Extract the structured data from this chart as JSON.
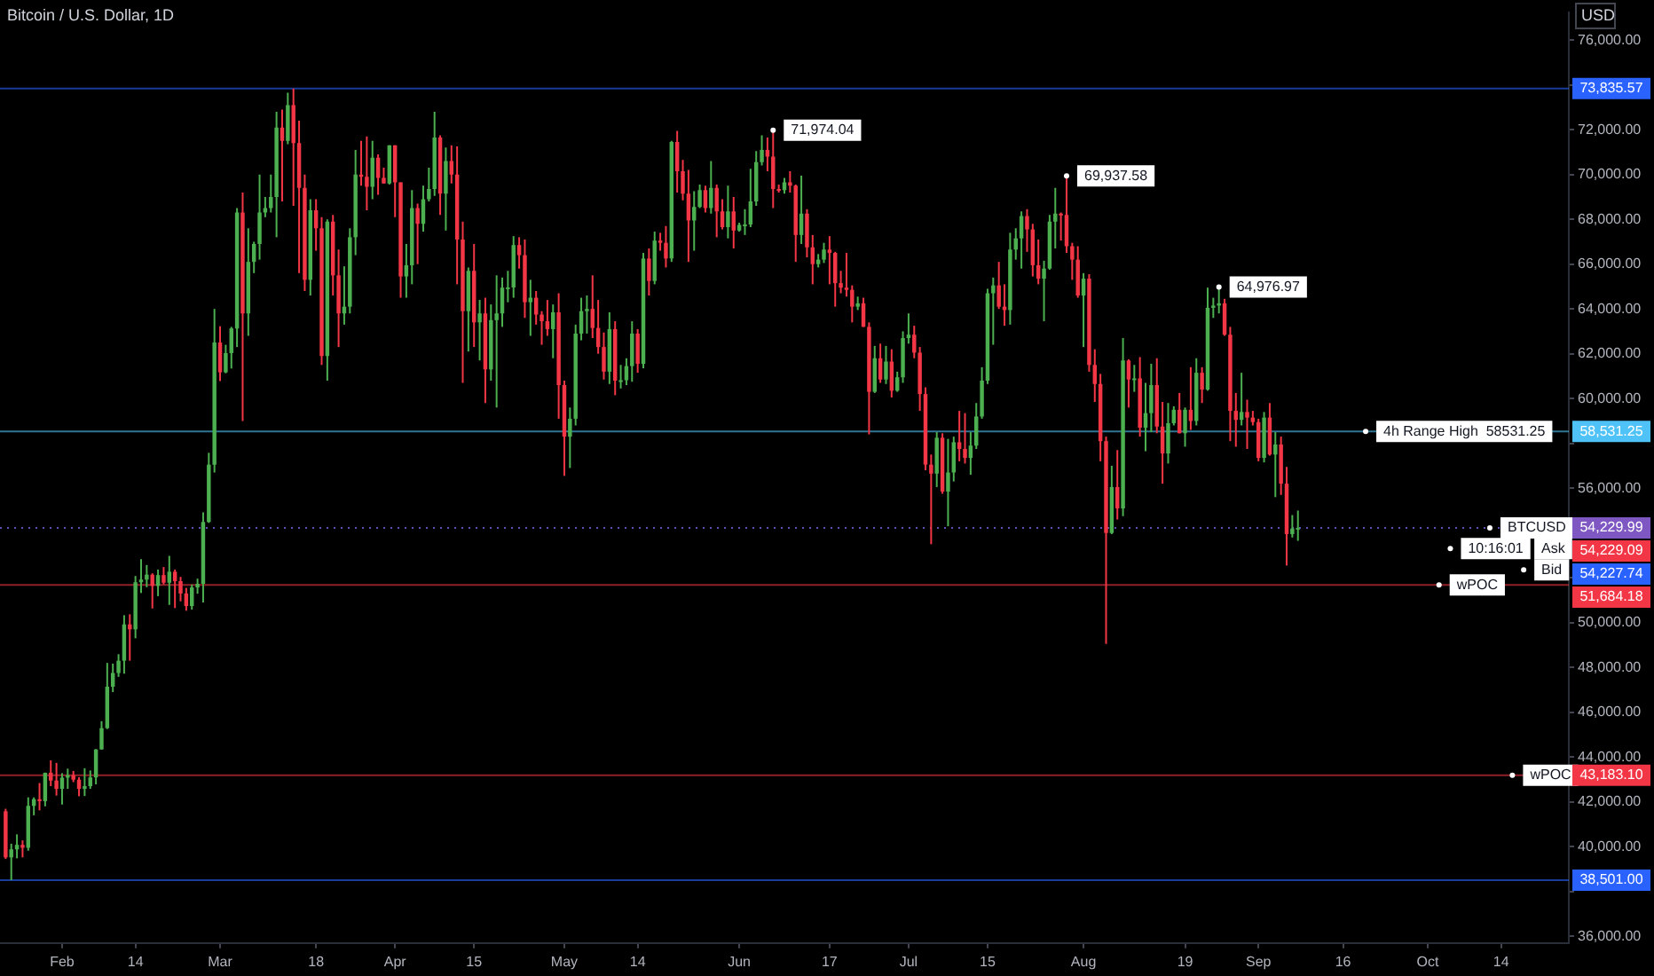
{
  "chart_data": {
    "type": "candlestick",
    "title": "Bitcoin / U.S. Dollar, 1D",
    "ylabel": "USD",
    "x": [
      "--01-22",
      "--01-23",
      "--01-24",
      "--01-25",
      "--01-26",
      "--01-27",
      "--01-28",
      "--01-29",
      "--01-30",
      "--01-31",
      "--02-01",
      "--02-02",
      "--02-03",
      "--02-04",
      "--02-05",
      "--02-06",
      "--02-07",
      "--02-08",
      "--02-09",
      "--02-10",
      "--02-11",
      "--02-12",
      "--02-13",
      "--02-14",
      "--02-15",
      "--02-16",
      "--02-17",
      "--02-18",
      "--02-19",
      "--02-20",
      "--02-21",
      "--02-22",
      "--02-23",
      "--02-24",
      "--02-25",
      "--02-26",
      "--02-27",
      "--02-28",
      "--03-01",
      "--03-02",
      "--03-03",
      "--03-04",
      "--03-05",
      "--03-06",
      "--03-07",
      "--03-08",
      "--03-09",
      "--03-10",
      "--03-11",
      "--03-12",
      "--03-13",
      "--03-14",
      "--03-15",
      "--03-16",
      "--03-17",
      "--03-18",
      "--03-19",
      "--03-20",
      "--03-21",
      "--03-22",
      "--03-23",
      "--03-24",
      "--03-25",
      "--03-26",
      "--03-27",
      "--03-28",
      "--03-29",
      "--03-30",
      "--03-31",
      "--04-01",
      "--04-02",
      "--04-03",
      "--04-04",
      "--04-05",
      "--04-06",
      "--04-07",
      "--04-08",
      "--04-09",
      "--04-10",
      "--04-11",
      "--04-12",
      "--04-13",
      "--04-14",
      "--04-15",
      "--04-16",
      "--04-17",
      "--04-18",
      "--04-19",
      "--04-20",
      "--04-21",
      "--04-22",
      "--04-23",
      "--04-24",
      "--04-25",
      "--04-26",
      "--04-27",
      "--04-28",
      "--04-29",
      "--04-30",
      "--05-01",
      "--05-02",
      "--05-03",
      "--05-04",
      "--05-05",
      "--05-06",
      "--05-07",
      "--05-08",
      "--05-09",
      "--05-10",
      "--05-11",
      "--05-12",
      "--05-13",
      "--05-14",
      "--05-15",
      "--05-16",
      "--05-17",
      "--05-18",
      "--05-19",
      "--05-20",
      "--05-21",
      "--05-22",
      "--05-23",
      "--05-24",
      "--05-25",
      "--05-26",
      "--05-27",
      "--05-28",
      "--05-29",
      "--05-30",
      "--05-31",
      "--06-01",
      "--06-02",
      "--06-03",
      "--06-04",
      "--06-05",
      "--06-06",
      "--06-07",
      "--06-08",
      "--06-09",
      "--06-10",
      "--06-11",
      "--06-12",
      "--06-13",
      "--06-14",
      "--06-15",
      "--06-16",
      "--06-17",
      "--06-18",
      "--06-19",
      "--06-20",
      "--06-21",
      "--06-22",
      "--06-23",
      "--06-24",
      "--06-25",
      "--06-26",
      "--06-27",
      "--06-28",
      "--06-29",
      "--06-30",
      "--07-01",
      "--07-02",
      "--07-03",
      "--07-04",
      "--07-05",
      "--07-06",
      "--07-07",
      "--07-08",
      "--07-09",
      "--07-10",
      "--07-11",
      "--07-12",
      "--07-13",
      "--07-14",
      "--07-15",
      "--07-16",
      "--07-17",
      "--07-18",
      "--07-19",
      "--07-20",
      "--07-21",
      "--07-22",
      "--07-23",
      "--07-24",
      "--07-25",
      "--07-26",
      "--07-27",
      "--07-28",
      "--07-29",
      "--07-30",
      "--07-31",
      "--08-01",
      "--08-02",
      "--08-03",
      "--08-04",
      "--08-05",
      "--08-06",
      "--08-07",
      "--08-08",
      "--08-09",
      "--08-10",
      "--08-11",
      "--08-12",
      "--08-13",
      "--08-14",
      "--08-15",
      "--08-16",
      "--08-17",
      "--08-18",
      "--08-19",
      "--08-20",
      "--08-21",
      "--08-22",
      "--08-23",
      "--08-24",
      "--08-25",
      "--08-26",
      "--08-27",
      "--08-28",
      "--08-29",
      "--08-30",
      "--08-31",
      "--09-01",
      "--09-02",
      "--09-03",
      "--09-04",
      "--09-05",
      "--09-06",
      "--09-07",
      "--09-08"
    ],
    "ohlc": [
      [
        41580,
        41690,
        39450,
        39520
      ],
      [
        39520,
        40130,
        38501,
        39880
      ],
      [
        39880,
        40550,
        39480,
        40080
      ],
      [
        40080,
        40280,
        39520,
        39950
      ],
      [
        39950,
        42200,
        39820,
        41820
      ],
      [
        41820,
        42200,
        41400,
        42120
      ],
      [
        42120,
        42840,
        41620,
        42030
      ],
      [
        42030,
        43300,
        41800,
        43300
      ],
      [
        43300,
        43850,
        42700,
        42950
      ],
      [
        42950,
        43740,
        42280,
        42580
      ],
      [
        42580,
        43280,
        41880,
        43080
      ],
      [
        43080,
        43480,
        42580,
        43190
      ],
      [
        43190,
        43380,
        42880,
        42990
      ],
      [
        42990,
        43100,
        42250,
        42580
      ],
      [
        42580,
        43500,
        42260,
        42700
      ],
      [
        42700,
        43400,
        42580,
        43090
      ],
      [
        43090,
        44350,
        42780,
        44340
      ],
      [
        44340,
        45600,
        44330,
        45290
      ],
      [
        45290,
        48200,
        45250,
        47140
      ],
      [
        47140,
        48170,
        46900,
        47750
      ],
      [
        47750,
        48590,
        47580,
        48300
      ],
      [
        48300,
        50330,
        47720,
        49920
      ],
      [
        49920,
        50370,
        48300,
        49700
      ],
      [
        49700,
        52080,
        49300,
        51800
      ],
      [
        51800,
        52830,
        51320,
        51920
      ],
      [
        51920,
        52570,
        51580,
        52140
      ],
      [
        52140,
        52200,
        50630,
        51640
      ],
      [
        51640,
        52370,
        51180,
        52120
      ],
      [
        52120,
        52480,
        51700,
        51780
      ],
      [
        51780,
        52980,
        50790,
        52270
      ],
      [
        52270,
        52370,
        50650,
        51850
      ],
      [
        51850,
        52040,
        50950,
        51300
      ],
      [
        51300,
        51550,
        50530,
        50740
      ],
      [
        50740,
        51700,
        50580,
        51570
      ],
      [
        51570,
        51960,
        51290,
        51730
      ],
      [
        51730,
        54920,
        50900,
        54490
      ],
      [
        54490,
        57580,
        54450,
        57050
      ],
      [
        57050,
        64000,
        56700,
        62500
      ],
      [
        62500,
        63230,
        60780,
        61170
      ],
      [
        61170,
        62400,
        61130,
        62030
      ],
      [
        62030,
        63200,
        61340,
        63130
      ],
      [
        63130,
        68500,
        62300,
        68300
      ],
      [
        68300,
        69200,
        59000,
        63800
      ],
      [
        63800,
        67600,
        62800,
        66100
      ],
      [
        66100,
        67000,
        65600,
        66900
      ],
      [
        66900,
        70000,
        66200,
        68300
      ],
      [
        68300,
        69000,
        68100,
        68500
      ],
      [
        68500,
        70000,
        68300,
        69000
      ],
      [
        69000,
        72800,
        67200,
        72100
      ],
      [
        72100,
        72900,
        68800,
        71500
      ],
      [
        71500,
        73650,
        71350,
        73100
      ],
      [
        73100,
        73835.57,
        68600,
        71400
      ],
      [
        71400,
        72400,
        65600,
        69400
      ],
      [
        69400,
        70000,
        64800,
        65300
      ],
      [
        65300,
        68900,
        64600,
        68400
      ],
      [
        68400,
        68900,
        66600,
        67600
      ],
      [
        67600,
        68100,
        61500,
        61900
      ],
      [
        61900,
        68000,
        60800,
        67900
      ],
      [
        67900,
        68200,
        64600,
        65500
      ],
      [
        65500,
        66650,
        62300,
        63800
      ],
      [
        63800,
        65900,
        63300,
        64100
      ],
      [
        64100,
        67600,
        63800,
        67200
      ],
      [
        67200,
        71100,
        66400,
        70000
      ],
      [
        70000,
        71500,
        69500,
        69900
      ],
      [
        69900,
        71700,
        68400,
        69450
      ],
      [
        69450,
        71500,
        68900,
        70750
      ],
      [
        70750,
        70900,
        69100,
        69850
      ],
      [
        69850,
        70300,
        69600,
        69600
      ],
      [
        69600,
        71300,
        69550,
        71300
      ],
      [
        71300,
        71300,
        68100,
        69650
      ],
      [
        69650,
        69650,
        64500,
        65450
      ],
      [
        65450,
        66900,
        64500,
        65950
      ],
      [
        65950,
        69300,
        65100,
        68500
      ],
      [
        68500,
        68700,
        66000,
        67800
      ],
      [
        67800,
        69500,
        67450,
        68900
      ],
      [
        68900,
        70300,
        68800,
        69350
      ],
      [
        69350,
        72800,
        69050,
        71650
      ],
      [
        71650,
        71750,
        68200,
        69150
      ],
      [
        69150,
        71200,
        67500,
        70600
      ],
      [
        70600,
        71300,
        69600,
        70000
      ],
      [
        70000,
        71250,
        65100,
        67100
      ],
      [
        67100,
        67900,
        60700,
        63900
      ],
      [
        63900,
        65850,
        62100,
        65700
      ],
      [
        65700,
        66900,
        62300,
        63400
      ],
      [
        63400,
        64400,
        61700,
        63800
      ],
      [
        63800,
        64500,
        59800,
        61300
      ],
      [
        61300,
        64200,
        60800,
        63500
      ],
      [
        63500,
        65500,
        59600,
        63800
      ],
      [
        63800,
        65400,
        63200,
        64950
      ],
      [
        64950,
        65700,
        64300,
        64960
      ],
      [
        64960,
        67250,
        64500,
        66850
      ],
      [
        66850,
        67200,
        65800,
        66400
      ],
      [
        66400,
        67100,
        63600,
        64300
      ],
      [
        64300,
        65300,
        62800,
        64500
      ],
      [
        64500,
        64800,
        63300,
        63750
      ],
      [
        63750,
        63900,
        62400,
        63450
      ],
      [
        63450,
        64400,
        62800,
        63100
      ],
      [
        63100,
        64200,
        61800,
        63850
      ],
      [
        63850,
        64700,
        59100,
        60600
      ],
      [
        60600,
        60800,
        56550,
        58300
      ],
      [
        58300,
        59600,
        56900,
        59100
      ],
      [
        59100,
        63300,
        58800,
        62900
      ],
      [
        62900,
        64500,
        62600,
        63900
      ],
      [
        63900,
        64600,
        62900,
        64000
      ],
      [
        64000,
        65500,
        62700,
        63150
      ],
      [
        63150,
        64400,
        62000,
        62300
      ],
      [
        62300,
        62950,
        60850,
        61200
      ],
      [
        61200,
        63850,
        60650,
        63100
      ],
      [
        63100,
        63450,
        60150,
        60800
      ],
      [
        60800,
        61500,
        60450,
        60820
      ],
      [
        60820,
        61800,
        60600,
        61450
      ],
      [
        61450,
        63450,
        60750,
        62900
      ],
      [
        62900,
        63100,
        61150,
        61550
      ],
      [
        61550,
        66500,
        61350,
        66250
      ],
      [
        66250,
        66700,
        64600,
        65250
      ],
      [
        65250,
        67450,
        65100,
        67050
      ],
      [
        67050,
        67400,
        66600,
        66950
      ],
      [
        66950,
        67700,
        65850,
        66250
      ],
      [
        66250,
        71500,
        66100,
        71450
      ],
      [
        71450,
        71950,
        69200,
        70150
      ],
      [
        70150,
        70650,
        68850,
        69150
      ],
      [
        69150,
        70200,
        66100,
        67950
      ],
      [
        67950,
        69250,
        66600,
        68550
      ],
      [
        68550,
        69550,
        68500,
        69300
      ],
      [
        69300,
        69500,
        68300,
        68500
      ],
      [
        68500,
        70600,
        68250,
        69400
      ],
      [
        69400,
        69550,
        67200,
        68350
      ],
      [
        68350,
        68900,
        67550,
        67650
      ],
      [
        67650,
        69500,
        67150,
        68350
      ],
      [
        68350,
        69000,
        66700,
        67500
      ],
      [
        67500,
        67850,
        67450,
        67750
      ],
      [
        67750,
        68450,
        67300,
        67770
      ],
      [
        67770,
        70250,
        67650,
        68800
      ],
      [
        68800,
        71050,
        68600,
        70550
      ],
      [
        70550,
        71750,
        70400,
        71100
      ],
      [
        71100,
        71650,
        70150,
        70800
      ],
      [
        70800,
        71974.04,
        68500,
        69350
      ],
      [
        69350,
        69550,
        69200,
        69300
      ],
      [
        69300,
        69850,
        69150,
        69650
      ],
      [
        69650,
        70150,
        69200,
        69500
      ],
      [
        69500,
        69550,
        66100,
        67300
      ],
      [
        67300,
        69950,
        66900,
        68250
      ],
      [
        68250,
        68450,
        66300,
        66750
      ],
      [
        66750,
        67300,
        65100,
        66000
      ],
      [
        66000,
        66450,
        65850,
        66200
      ],
      [
        66200,
        66950,
        66050,
        66650
      ],
      [
        66650,
        67250,
        65100,
        66500
      ],
      [
        66500,
        66550,
        64100,
        65150
      ],
      [
        65150,
        65700,
        64700,
        64950
      ],
      [
        64950,
        66500,
        64550,
        64850
      ],
      [
        64850,
        65050,
        63400,
        64100
      ],
      [
        64100,
        64550,
        63950,
        64250
      ],
      [
        64250,
        64500,
        63200,
        63200
      ],
      [
        63200,
        63400,
        58400,
        60300
      ],
      [
        60300,
        62350,
        60250,
        61800
      ],
      [
        61800,
        62450,
        60700,
        60850
      ],
      [
        60850,
        62350,
        60650,
        61650
      ],
      [
        61650,
        62200,
        60050,
        60350
      ],
      [
        60350,
        61200,
        60300,
        60950
      ],
      [
        60950,
        63000,
        60700,
        62700
      ],
      [
        62700,
        63800,
        62450,
        62850
      ],
      [
        62850,
        63250,
        61800,
        62050
      ],
      [
        62050,
        62300,
        59450,
        60200
      ],
      [
        60200,
        60500,
        56800,
        57050
      ],
      [
        57050,
        57500,
        53500,
        56650
      ],
      [
        56650,
        58500,
        56050,
        58250
      ],
      [
        58250,
        58450,
        55750,
        55850
      ],
      [
        55850,
        58200,
        54300,
        56700
      ],
      [
        56700,
        58300,
        56300,
        58050
      ],
      [
        58050,
        59450,
        57200,
        57750
      ],
      [
        57750,
        59350,
        57100,
        57350
      ],
      [
        57350,
        58500,
        56600,
        57900
      ],
      [
        57900,
        59800,
        57750,
        59200
      ],
      [
        59200,
        61400,
        59100,
        60800
      ],
      [
        60800,
        64900,
        60650,
        64700
      ],
      [
        64700,
        65400,
        62400,
        65050
      ],
      [
        65050,
        66100,
        64000,
        64100
      ],
      [
        64100,
        65100,
        63250,
        63950
      ],
      [
        63950,
        67400,
        63300,
        66650
      ],
      [
        66650,
        67600,
        66200,
        67150
      ],
      [
        67150,
        68350,
        65800,
        68150
      ],
      [
        68150,
        68450,
        66550,
        67550
      ],
      [
        67550,
        67800,
        65450,
        65950
      ],
      [
        65950,
        67100,
        65100,
        65350
      ],
      [
        65350,
        66150,
        63450,
        65800
      ],
      [
        65800,
        68200,
        65750,
        67900
      ],
      [
        67900,
        69400,
        66700,
        68250
      ],
      [
        68250,
        68300,
        67050,
        68200
      ],
      [
        68200,
        69937.58,
        66500,
        66800
      ],
      [
        66800,
        66950,
        65300,
        66200
      ],
      [
        66200,
        66800,
        64500,
        64600
      ],
      [
        64600,
        65600,
        62300,
        65350
      ],
      [
        65350,
        65550,
        61200,
        61500
      ],
      [
        61500,
        62200,
        59850,
        60650
      ],
      [
        60650,
        61100,
        57200,
        58100
      ],
      [
        58100,
        58300,
        49050,
        54000
      ],
      [
        54000,
        57000,
        53950,
        56050
      ],
      [
        56050,
        57700,
        54600,
        55100
      ],
      [
        55100,
        62700,
        54750,
        61700
      ],
      [
        61700,
        61750,
        59600,
        60850
      ],
      [
        60850,
        61500,
        60300,
        60900
      ],
      [
        60900,
        61850,
        58300,
        58700
      ],
      [
        58700,
        60700,
        57650,
        59350
      ],
      [
        59350,
        61550,
        58500,
        60600
      ],
      [
        60600,
        61800,
        58450,
        58750
      ],
      [
        58750,
        59850,
        56200,
        57550
      ],
      [
        57550,
        59800,
        57100,
        58900
      ],
      [
        58900,
        59650,
        58800,
        59500
      ],
      [
        59500,
        60250,
        58450,
        58450
      ],
      [
        58450,
        59600,
        57850,
        59500
      ],
      [
        59500,
        61400,
        58600,
        59000
      ],
      [
        59000,
        61800,
        58800,
        61150
      ],
      [
        61150,
        61400,
        59800,
        60400
      ],
      [
        60400,
        64950,
        60350,
        64050
      ],
      [
        64050,
        64500,
        63600,
        64150
      ],
      [
        64150,
        64976.97,
        63800,
        64250
      ],
      [
        64250,
        64450,
        62800,
        62850
      ],
      [
        62850,
        63200,
        58100,
        59450
      ],
      [
        59450,
        60250,
        57850,
        59050
      ],
      [
        59050,
        61150,
        58800,
        59400
      ],
      [
        59400,
        59950,
        57750,
        59150
      ],
      [
        59150,
        59450,
        58800,
        58950
      ],
      [
        58950,
        59100,
        57200,
        57350
      ],
      [
        57350,
        59400,
        57150,
        59150
      ],
      [
        59150,
        59800,
        57450,
        57500
      ],
      [
        57500,
        58500,
        55600,
        57950
      ],
      [
        57950,
        58300,
        55700,
        56200
      ],
      [
        56200,
        56950,
        52550,
        53950
      ],
      [
        53950,
        54800,
        53800,
        54200
      ],
      [
        54200,
        55000,
        53650,
        54229.99
      ]
    ],
    "colors": [
      "#f23645",
      "#4caf50",
      "#4caf50",
      "#f23645",
      "#4caf50",
      "#4caf50",
      "#f23645",
      "#4caf50",
      "#f23645",
      "#f23645",
      "#4caf50",
      "#4caf50",
      "#f23645",
      "#f23645",
      "#4caf50",
      "#4caf50",
      "#4caf50",
      "#4caf50",
      "#4caf50",
      "#4caf50",
      "#4caf50",
      "#4caf50",
      "#f23645",
      "#4caf50",
      "#4caf50",
      "#4caf50",
      "#f23645",
      "#4caf50",
      "#f23645",
      "#4caf50",
      "#f23645",
      "#f23645",
      "#f23645",
      "#4caf50",
      "#4caf50",
      "#4caf50",
      "#4caf50",
      "#4caf50",
      "#f23645",
      "#4caf50",
      "#4caf50",
      "#4caf50",
      "#f23645",
      "#4caf50",
      "#4caf50",
      "#4caf50",
      "#4caf50",
      "#4caf50",
      "#4caf50",
      "#f23645",
      "#4caf50",
      "#f23645",
      "#f23645",
      "#f23645",
      "#4caf50",
      "#f23645",
      "#f23645",
      "#4caf50",
      "#f23645",
      "#f23645",
      "#4caf50",
      "#4caf50",
      "#4caf50",
      "#f23645",
      "#f23645",
      "#4caf50",
      "#f23645",
      "#f23645",
      "#4caf50",
      "#f23645",
      "#f23645",
      "#4caf50",
      "#4caf50",
      "#f23645",
      "#4caf50",
      "#4caf50",
      "#4caf50",
      "#f23645",
      "#4caf50",
      "#f23645",
      "#f23645",
      "#f23645",
      "#4caf50",
      "#f23645",
      "#4caf50",
      "#f23645",
      "#4caf50",
      "#4caf50",
      "#4caf50",
      "#4caf50",
      "#4caf50",
      "#f23645",
      "#f23645",
      "#4caf50",
      "#f23645",
      "#f23645",
      "#f23645",
      "#4caf50",
      "#f23645",
      "#f23645",
      "#4caf50",
      "#4caf50",
      "#4caf50",
      "#4caf50",
      "#f23645",
      "#f23645",
      "#f23645",
      "#4caf50",
      "#f23645",
      "#4caf50",
      "#4caf50",
      "#4caf50",
      "#f23645",
      "#4caf50",
      "#f23645",
      "#4caf50",
      "#f23645",
      "#f23645",
      "#4caf50",
      "#f23645",
      "#f23645",
      "#f23645",
      "#4caf50",
      "#4caf50",
      "#f23645",
      "#4caf50",
      "#f23645",
      "#f23645",
      "#4caf50",
      "#f23645",
      "#4caf50",
      "#4caf50",
      "#4caf50",
      "#4caf50",
      "#4caf50",
      "#f23645",
      "#f23645",
      "#f23645",
      "#4caf50",
      "#f23645",
      "#f23645",
      "#4caf50",
      "#f23645",
      "#f23645",
      "#4caf50",
      "#4caf50",
      "#f23645",
      "#f23645",
      "#f23645",
      "#f23645",
      "#f23645",
      "#4caf50",
      "#f23645",
      "#f23645",
      "#4caf50",
      "#f23645",
      "#4caf50",
      "#f23645",
      "#4caf50",
      "#4caf50",
      "#4caf50",
      "#f23645",
      "#f23645",
      "#f23645",
      "#f23645",
      "#4caf50",
      "#f23645",
      "#4caf50",
      "#4caf50",
      "#f23645",
      "#f23645",
      "#4caf50",
      "#4caf50",
      "#4caf50",
      "#4caf50",
      "#4caf50",
      "#f23645",
      "#f23645",
      "#4caf50",
      "#4caf50",
      "#4caf50",
      "#f23645",
      "#f23645",
      "#f23645",
      "#4caf50",
      "#4caf50",
      "#4caf50",
      "#f23645",
      "#f23645",
      "#f23645",
      "#f23645",
      "#4caf50",
      "#f23645",
      "#f23645",
      "#f23645",
      "#f23645",
      "#4caf50",
      "#f23645",
      "#4caf50",
      "#f23645",
      "#4caf50",
      "#f23645",
      "#4caf50",
      "#4caf50",
      "#f23645",
      "#f23645",
      "#4caf50",
      "#4caf50",
      "#f23645",
      "#4caf50",
      "#f23645",
      "#4caf50",
      "#f23645",
      "#4caf50",
      "#4caf50",
      "#4caf50",
      "#f23645",
      "#f23645",
      "#f23645",
      "#4caf50",
      "#f23645",
      "#f23645",
      "#f23645",
      "#4caf50",
      "#f23645",
      "#4caf50",
      "#f23645",
      "#f23645",
      "#4caf50",
      "#4caf50"
    ],
    "xlim": [
      "--01-21",
      "--10-26"
    ],
    "xticks": [
      {
        "value": "--02-01",
        "label": "Feb"
      },
      {
        "value": "--02-14",
        "label": "14"
      },
      {
        "value": "--03-01",
        "label": "Mar"
      },
      {
        "value": "--03-18",
        "label": "18"
      },
      {
        "value": "--04-01",
        "label": "Apr"
      },
      {
        "value": "--04-15",
        "label": "15"
      },
      {
        "value": "--05-01",
        "label": "May"
      },
      {
        "value": "--05-14",
        "label": "14"
      },
      {
        "value": "--06-01",
        "label": "Jun"
      },
      {
        "value": "--06-17",
        "label": "17"
      },
      {
        "value": "--07-01",
        "label": "Jul"
      },
      {
        "value": "--07-15",
        "label": "15"
      },
      {
        "value": "--08-01",
        "label": "Aug"
      },
      {
        "value": "--08-19",
        "label": "19"
      },
      {
        "value": "--09-01",
        "label": "Sep"
      },
      {
        "value": "--09-16",
        "label": "16"
      },
      {
        "value": "--10-01",
        "label": "Oct"
      },
      {
        "value": "--10-14",
        "label": "14"
      }
    ],
    "ylim": [
      35700,
      77250
    ],
    "yticks": [
      {
        "value": 36000,
        "label": "36,000.00"
      },
      {
        "value": 38000,
        "label": null
      },
      {
        "value": 40000,
        "label": "40,000.00"
      },
      {
        "value": 42000,
        "label": "42,000.00"
      },
      {
        "value": 44000,
        "label": "44,000.00"
      },
      {
        "value": 46000,
        "label": "46,000.00"
      },
      {
        "value": 48000,
        "label": "48,000.00"
      },
      {
        "value": 50000,
        "label": "50,000.00"
      },
      {
        "value": 52000,
        "label": null
      },
      {
        "value": 54000,
        "label": null
      },
      {
        "value": 56000,
        "label": "56,000.00"
      },
      {
        "value": 58000,
        "label": null
      },
      {
        "value": 60000,
        "label": "60,000.00"
      },
      {
        "value": 62000,
        "label": "62,000.00"
      },
      {
        "value": 64000,
        "label": "64,000.00"
      },
      {
        "value": 66000,
        "label": "66,000.00"
      },
      {
        "value": 68000,
        "label": "68,000.00"
      },
      {
        "value": 70000,
        "label": "70,000.00"
      },
      {
        "value": 72000,
        "label": "72,000.00"
      },
      {
        "value": 74000,
        "label": null
      },
      {
        "value": 76000,
        "label": "76,000.00"
      }
    ],
    "ref_lines": [
      {
        "axis": "y",
        "value": 73835.57,
        "label": "73,835.57",
        "color": "#2962ff",
        "line_style": "solid"
      },
      {
        "axis": "y",
        "value": 58531.25,
        "label": "58,531.25",
        "color": "#4fc3f7",
        "line_style": "solid"
      },
      {
        "axis": "y",
        "value": 54229.99,
        "label": "54,229.99",
        "color": "#7e57c2",
        "line_style": "dotted"
      },
      {
        "axis": "y",
        "value": 54229.09,
        "label": "54,229.09",
        "color": "#f23645",
        "line_style": "dotted"
      },
      {
        "axis": "y",
        "value": 54227.74,
        "label": "54,227.74",
        "color": "#2962ff",
        "line_style": "dotted"
      },
      {
        "axis": "y",
        "value": 51684.18,
        "label": "51,684.18",
        "color": "#f23645",
        "line_style": "solid"
      },
      {
        "axis": "y",
        "value": 43183.1,
        "label": "43,183.10",
        "color": "#f23645",
        "line_style": "solid"
      },
      {
        "axis": "y",
        "value": 38501,
        "label": "38,501.00",
        "color": "#2962ff",
        "line_style": "solid"
      }
    ],
    "annotations": [
      {
        "text": "71,974.04",
        "x": "--06-07",
        "y": 71974.04
      },
      {
        "text": "69,937.58",
        "x": "--07-29",
        "y": 69937.58
      },
      {
        "text": "64,976.97",
        "x": "--08-25",
        "y": 64976.97
      },
      {
        "text": "4h Range High  58531.25",
        "x": "--09-20",
        "y": 58531.25
      },
      {
        "text": "BTCUSD",
        "x": "--10-12",
        "y": 54229.99
      },
      {
        "text": "10:16:01",
        "x": "--10-05",
        "y": 53300
      },
      {
        "text": "Ask",
        "x": "--10-18",
        "y": 53300
      },
      {
        "text": "Bid",
        "x": "--10-18",
        "y": 52350
      },
      {
        "text": "wPOC",
        "x": "--10-03",
        "y": 51684.18
      },
      {
        "text": "wPOC",
        "x": "--10-16",
        "y": 43183.1
      }
    ]
  }
}
